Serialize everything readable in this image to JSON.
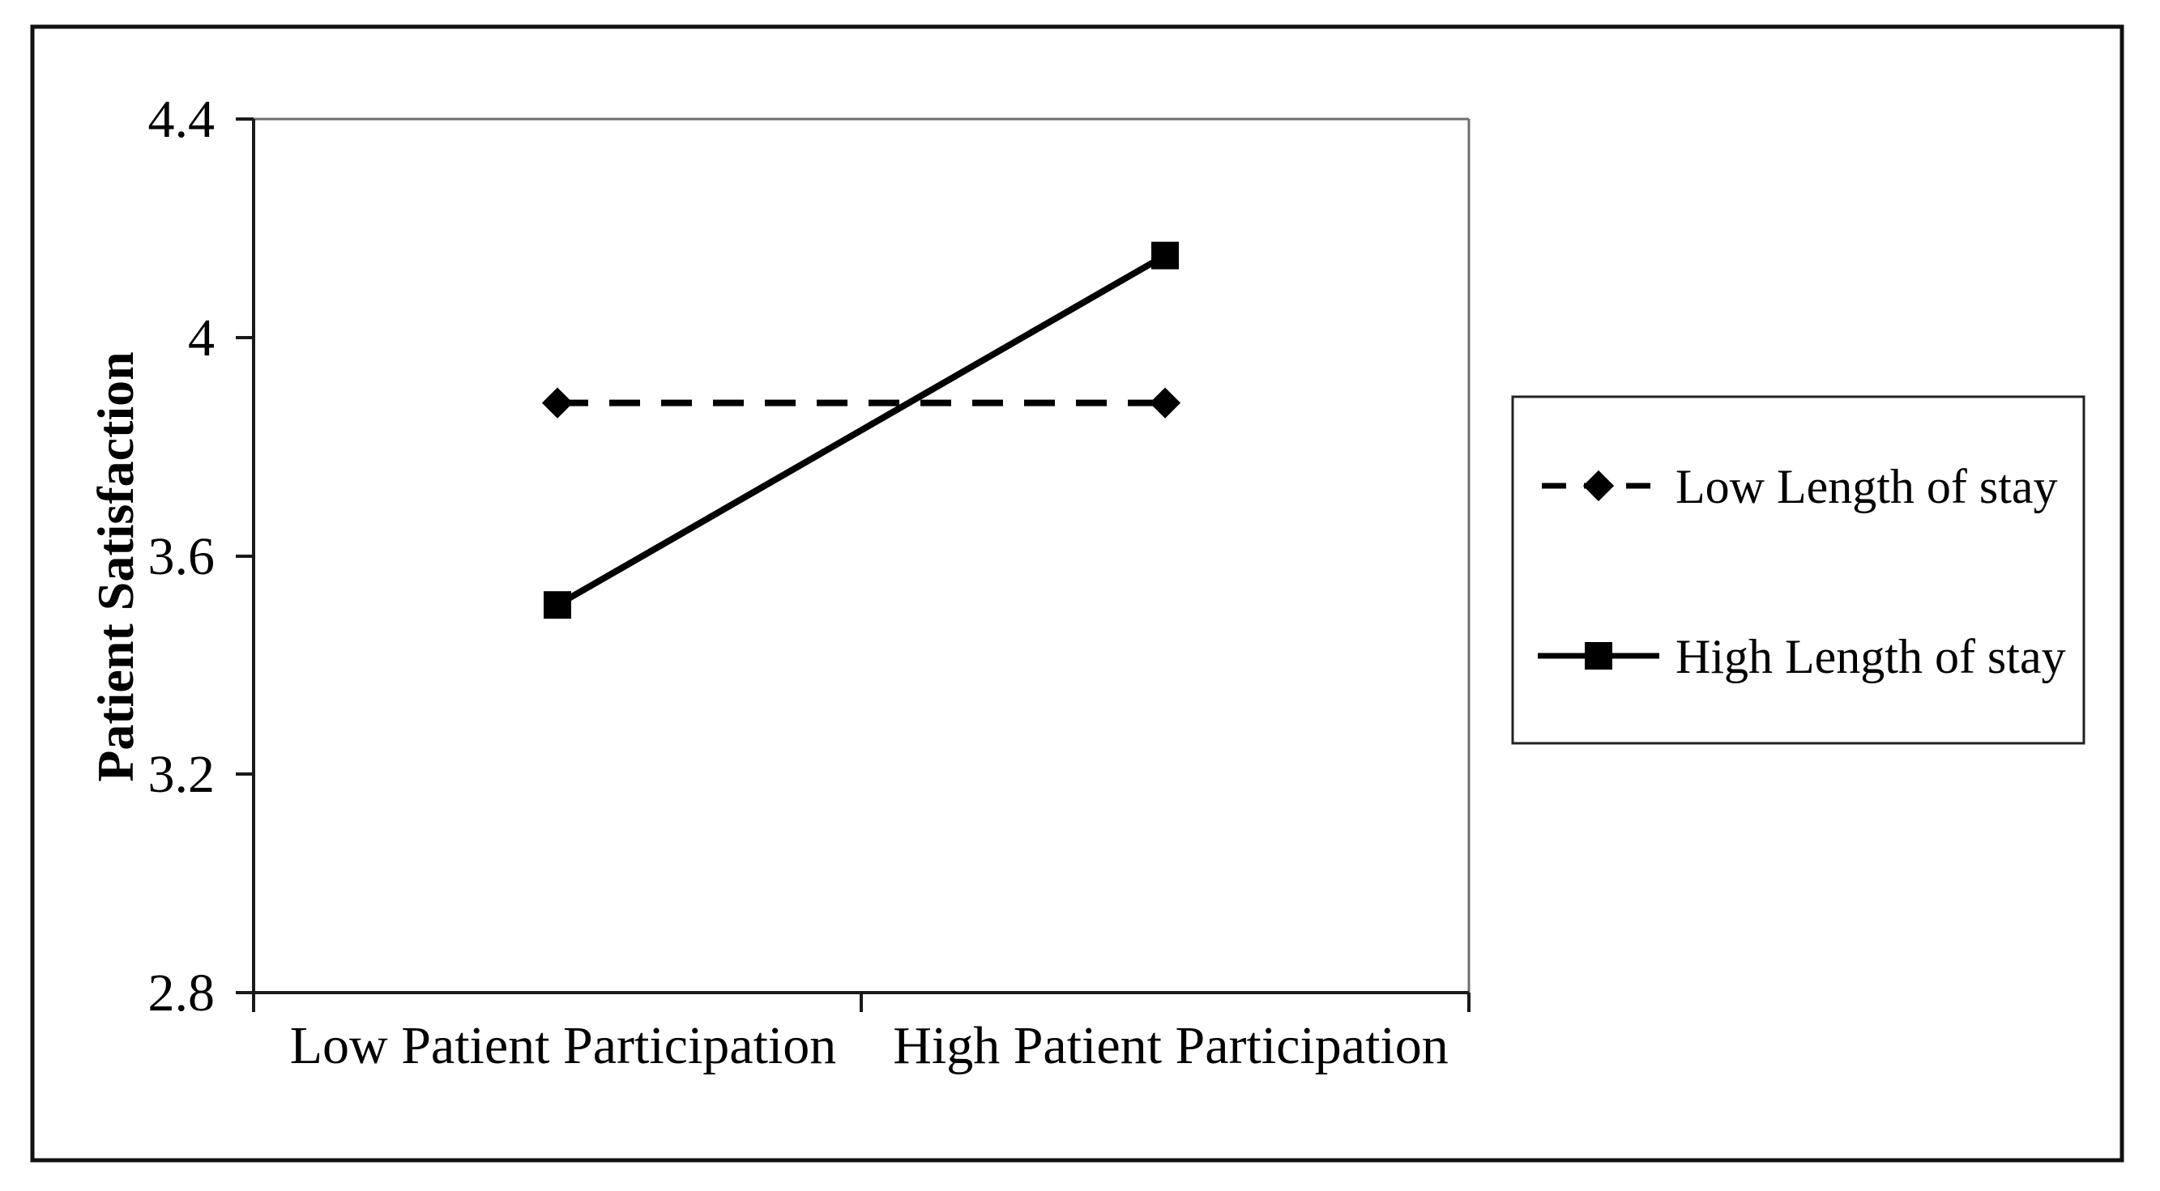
{
  "chart_data": {
    "type": "line",
    "title": "",
    "categories": [
      "Low Patient Participation",
      "High Patient Participation"
    ],
    "series": [
      {
        "name": "Low Length of stay",
        "values": [
          3.88,
          3.88
        ],
        "line_style": "dashed",
        "marker": "diamond",
        "color": "#000000"
      },
      {
        "name": "High Length of stay",
        "values": [
          3.51,
          4.15
        ],
        "line_style": "solid",
        "marker": "square",
        "color": "#000000"
      }
    ],
    "xlabel": "",
    "ylabel": "Patient Satisfaction",
    "ylim": [
      2.8,
      4.4
    ],
    "y_tick_values": [
      4.4,
      4.0,
      3.6,
      3.2,
      2.8
    ],
    "y_tick_labels": [
      "4.4",
      "4",
      "3.6",
      "3.2",
      "2.8"
    ],
    "grid": false,
    "legend_position": "right-outside",
    "colors": {
      "series": "#000000",
      "axis": "#1a1a1a",
      "plot_frame_light": "#6e6e6e",
      "outer_border": "#111111"
    }
  }
}
